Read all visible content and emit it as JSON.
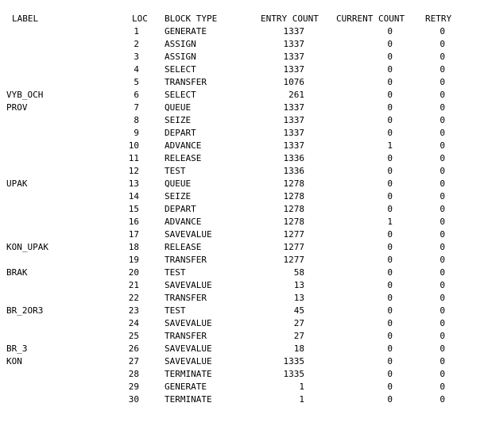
{
  "headers": {
    "label": "LABEL",
    "loc": "LOC",
    "block_type": "BLOCK TYPE",
    "entry_count": "ENTRY COUNT",
    "current_count": "CURRENT COUNT",
    "retry": "RETRY"
  },
  "rows": [
    {
      "label": "",
      "loc": "1",
      "block_type": "GENERATE",
      "entry": "1337",
      "current": "0",
      "retry": "0"
    },
    {
      "label": "",
      "loc": "2",
      "block_type": "ASSIGN",
      "entry": "1337",
      "current": "0",
      "retry": "0"
    },
    {
      "label": "",
      "loc": "3",
      "block_type": "ASSIGN",
      "entry": "1337",
      "current": "0",
      "retry": "0"
    },
    {
      "label": "",
      "loc": "4",
      "block_type": "SELECT",
      "entry": "1337",
      "current": "0",
      "retry": "0"
    },
    {
      "label": "",
      "loc": "5",
      "block_type": "TRANSFER",
      "entry": "1076",
      "current": "0",
      "retry": "0"
    },
    {
      "label": "VYB_OCH",
      "loc": "6",
      "block_type": "SELECT",
      "entry": "261",
      "current": "0",
      "retry": "0"
    },
    {
      "label": "PROV",
      "loc": "7",
      "block_type": "QUEUE",
      "entry": "1337",
      "current": "0",
      "retry": "0"
    },
    {
      "label": "",
      "loc": "8",
      "block_type": "SEIZE",
      "entry": "1337",
      "current": "0",
      "retry": "0"
    },
    {
      "label": "",
      "loc": "9",
      "block_type": "DEPART",
      "entry": "1337",
      "current": "0",
      "retry": "0"
    },
    {
      "label": "",
      "loc": "10",
      "block_type": "ADVANCE",
      "entry": "1337",
      "current": "1",
      "retry": "0"
    },
    {
      "label": "",
      "loc": "11",
      "block_type": "RELEASE",
      "entry": "1336",
      "current": "0",
      "retry": "0"
    },
    {
      "label": "",
      "loc": "12",
      "block_type": "TEST",
      "entry": "1336",
      "current": "0",
      "retry": "0"
    },
    {
      "label": "UPAK",
      "loc": "13",
      "block_type": "QUEUE",
      "entry": "1278",
      "current": "0",
      "retry": "0"
    },
    {
      "label": "",
      "loc": "14",
      "block_type": "SEIZE",
      "entry": "1278",
      "current": "0",
      "retry": "0"
    },
    {
      "label": "",
      "loc": "15",
      "block_type": "DEPART",
      "entry": "1278",
      "current": "0",
      "retry": "0"
    },
    {
      "label": "",
      "loc": "16",
      "block_type": "ADVANCE",
      "entry": "1278",
      "current": "1",
      "retry": "0"
    },
    {
      "label": "",
      "loc": "17",
      "block_type": "SAVEVALUE",
      "entry": "1277",
      "current": "0",
      "retry": "0"
    },
    {
      "label": "KON_UPAK",
      "loc": "18",
      "block_type": "RELEASE",
      "entry": "1277",
      "current": "0",
      "retry": "0"
    },
    {
      "label": "",
      "loc": "19",
      "block_type": "TRANSFER",
      "entry": "1277",
      "current": "0",
      "retry": "0"
    },
    {
      "label": "BRAK",
      "loc": "20",
      "block_type": "TEST",
      "entry": "58",
      "current": "0",
      "retry": "0"
    },
    {
      "label": "",
      "loc": "21",
      "block_type": "SAVEVALUE",
      "entry": "13",
      "current": "0",
      "retry": "0"
    },
    {
      "label": "",
      "loc": "22",
      "block_type": "TRANSFER",
      "entry": "13",
      "current": "0",
      "retry": "0"
    },
    {
      "label": "BR_2OR3",
      "loc": "23",
      "block_type": "TEST",
      "entry": "45",
      "current": "0",
      "retry": "0"
    },
    {
      "label": "",
      "loc": "24",
      "block_type": "SAVEVALUE",
      "entry": "27",
      "current": "0",
      "retry": "0"
    },
    {
      "label": "",
      "loc": "25",
      "block_type": "TRANSFER",
      "entry": "27",
      "current": "0",
      "retry": "0"
    },
    {
      "label": "BR_3",
      "loc": "26",
      "block_type": "SAVEVALUE",
      "entry": "18",
      "current": "0",
      "retry": "0"
    },
    {
      "label": "KON",
      "loc": "27",
      "block_type": "SAVEVALUE",
      "entry": "1335",
      "current": "0",
      "retry": "0"
    },
    {
      "label": "",
      "loc": "28",
      "block_type": "TERMINATE",
      "entry": "1335",
      "current": "0",
      "retry": "0"
    },
    {
      "label": "",
      "loc": "29",
      "block_type": "GENERATE",
      "entry": "1",
      "current": "0",
      "retry": "0"
    },
    {
      "label": "",
      "loc": "30",
      "block_type": "TERMINATE",
      "entry": "1",
      "current": "0",
      "retry": "0"
    }
  ]
}
